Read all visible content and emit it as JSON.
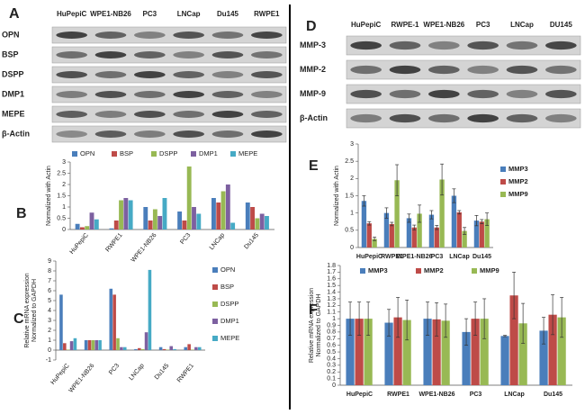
{
  "blots": [
    {
      "panel": "A",
      "lanes": [
        "HuPepiC",
        "WPE1-NB26",
        "PC3",
        "LNCap",
        "Du145",
        "RWPE1"
      ],
      "rows": [
        "OPN",
        "BSP",
        "DSPP",
        "DMP1",
        "MEPE",
        "β-Actin"
      ]
    },
    {
      "panel": "D",
      "lanes": [
        "HuPepiC",
        "RWPE-1",
        "WPE1-NB26",
        "PC3",
        "LNCap",
        "DU145"
      ],
      "rows": [
        "MMP-3",
        "MMP-2",
        "MMP-9",
        "β-Actin"
      ]
    }
  ],
  "chart_data": [
    {
      "type": "bar",
      "panel": "B",
      "ylabel": [
        "Normalized with Actin"
      ],
      "legend": "top",
      "categories": [
        "HuPepiC",
        "RWPE1",
        "WPE1-NB26",
        "PC3",
        "LNCap",
        "Du145"
      ],
      "ylim": [
        0,
        3
      ],
      "yticks": [
        0,
        0.5,
        1,
        1.5,
        2,
        2.5,
        3
      ],
      "series": [
        {
          "name": "OPN",
          "color": "#4a7ebb",
          "values": [
            0.25,
            0.05,
            1.0,
            0.8,
            1.4,
            1.2
          ]
        },
        {
          "name": "BSP",
          "color": "#be4b48",
          "values": [
            0.1,
            0.4,
            0.4,
            0.4,
            1.2,
            1.0
          ]
        },
        {
          "name": "DSPP",
          "color": "#98b954",
          "values": [
            0.15,
            1.3,
            0.9,
            2.8,
            1.7,
            0.5
          ]
        },
        {
          "name": "DMP1",
          "color": "#7d60a0",
          "values": [
            0.75,
            1.4,
            0.6,
            1.0,
            2.0,
            0.7
          ]
        },
        {
          "name": "MEPE",
          "color": "#46aac5",
          "values": [
            0.45,
            1.3,
            1.4,
            0.7,
            0.3,
            0.6
          ]
        }
      ]
    },
    {
      "type": "bar",
      "panel": "C",
      "ylabel": [
        "Relative mRNA expression",
        "Normalized to GAPDH"
      ],
      "legend": "right",
      "categories": [
        "HuPepiC",
        "WPE1-NB26",
        "PC3",
        "LNCap",
        "Du145",
        "RWPE1"
      ],
      "ylim": [
        -1,
        9
      ],
      "yticks": [
        -1,
        0,
        1,
        2,
        3,
        4,
        5,
        6,
        7,
        8,
        9
      ],
      "series": [
        {
          "name": "OPN",
          "color": "#4a7ebb",
          "values": [
            5.6,
            1.0,
            6.2,
            0.1,
            0.3,
            0.3
          ]
        },
        {
          "name": "BSP",
          "color": "#be4b48",
          "values": [
            0.7,
            1.0,
            5.6,
            0.2,
            0.1,
            0.6
          ]
        },
        {
          "name": "DSPP",
          "color": "#98b954",
          "values": [
            0.05,
            1.0,
            1.2,
            0.1,
            0.05,
            0.05
          ]
        },
        {
          "name": "DMP1",
          "color": "#7d60a0",
          "values": [
            0.9,
            1.0,
            0.3,
            1.8,
            0.4,
            0.3
          ]
        },
        {
          "name": "MEPE",
          "color": "#46aac5",
          "values": [
            1.2,
            1.0,
            0.3,
            8.1,
            0.1,
            0.3
          ]
        }
      ]
    },
    {
      "type": "bar",
      "panel": "E",
      "ylabel": [
        "Normalized with Actin"
      ],
      "legend": "right",
      "categories": [
        "HuPepiC",
        "RWPE1",
        "WPE1-NB26",
        "PC3",
        "LNCap",
        "Du145"
      ],
      "ylim": [
        0,
        3
      ],
      "yticks": [
        0,
        0.5,
        1,
        1.5,
        2,
        2.5,
        3
      ],
      "series": [
        {
          "name": "MMP3",
          "color": "#4a7ebb",
          "values": [
            1.35,
            1.0,
            0.85,
            0.95,
            1.5,
            0.78
          ],
          "errors": [
            0.15,
            0.15,
            0.12,
            0.12,
            0.2,
            0.15
          ]
        },
        {
          "name": "MMP2",
          "color": "#be4b48",
          "values": [
            0.7,
            0.68,
            0.58,
            0.58,
            1.02,
            0.75
          ],
          "errors": [
            0.05,
            0.05,
            0.07,
            0.06,
            0.05,
            0.06
          ]
        },
        {
          "name": "MMP9",
          "color": "#98b954",
          "values": [
            0.25,
            1.95,
            0.98,
            1.97,
            0.48,
            0.82
          ],
          "errors": [
            0.05,
            0.45,
            0.25,
            0.45,
            0.1,
            0.18
          ]
        }
      ]
    },
    {
      "type": "bar",
      "panel": "F",
      "ylabel": [
        "Relative mRNA expression",
        "Normalized to GAPDH"
      ],
      "legend": "top",
      "categories": [
        "HuPepiC",
        "RWPE1",
        "WPE1-NB26",
        "PC3",
        "LNCap",
        "Du145"
      ],
      "ylim": [
        0,
        1.8
      ],
      "yticks": [
        0,
        0.1,
        0.2,
        0.3,
        0.4,
        0.5,
        0.6,
        0.7,
        0.8,
        0.9,
        1,
        1.1,
        1.2,
        1.3,
        1.4,
        1.5,
        1.6,
        1.7,
        1.8
      ],
      "series": [
        {
          "name": "MMP3",
          "color": "#4a7ebb",
          "values": [
            1,
            0.94,
            1,
            0.8,
            0.74,
            0.82
          ],
          "errors": [
            0.25,
            0.2,
            0.25,
            0.2,
            0.01,
            0.2
          ]
        },
        {
          "name": "MMP2",
          "color": "#be4b48",
          "values": [
            1,
            1.02,
            0.99,
            1.0,
            1.35,
            1.06
          ],
          "errors": [
            0.25,
            0.3,
            0.25,
            0.25,
            0.35,
            0.3
          ]
        },
        {
          "name": "MMP9",
          "color": "#98b954",
          "values": [
            1,
            0.98,
            0.97,
            1.0,
            0.93,
            1.02
          ],
          "errors": [
            0.25,
            0.3,
            0.25,
            0.3,
            0.3,
            0.3
          ]
        }
      ]
    }
  ]
}
